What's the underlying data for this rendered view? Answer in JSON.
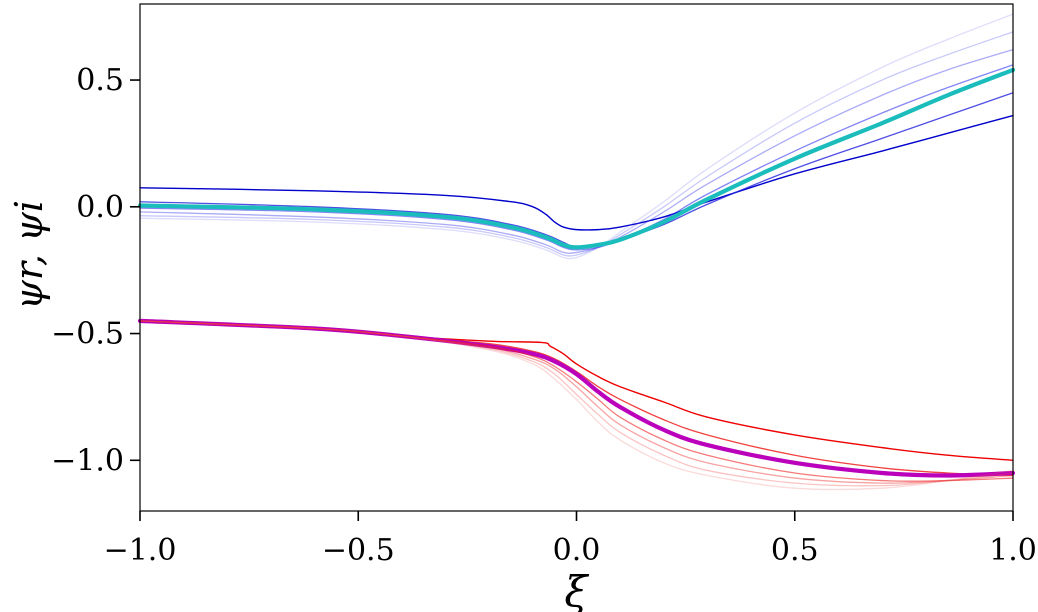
{
  "chart_data": {
    "type": "line",
    "title": "",
    "xlabel": "ξ",
    "ylabel": "ψr, ψi",
    "xlim": [
      -1.0,
      1.0
    ],
    "ylim": [
      -1.2,
      0.8
    ],
    "grid": false,
    "legend": "none",
    "x_ticks": [
      -1.0,
      -0.5,
      0.0,
      0.5,
      1.0
    ],
    "x_tick_labels": [
      "−1.0",
      "−0.5",
      "0.0",
      "0.5",
      "1.0"
    ],
    "y_ticks": [
      -1.0,
      -0.5,
      0.0,
      0.5
    ],
    "y_tick_labels": [
      "−1.0",
      "−0.5",
      "0.0",
      "0.5"
    ],
    "series": [
      {
        "color": "#0000cc",
        "opacity": 1.0,
        "width": 1.4,
        "points": [
          [
            -1.0,
            0.075
          ],
          [
            -0.6,
            0.063
          ],
          [
            -0.3,
            0.045
          ],
          [
            -0.15,
            0.02
          ],
          [
            -0.1,
            0.0
          ],
          [
            -0.07,
            -0.03
          ],
          [
            -0.05,
            -0.06
          ],
          [
            -0.03,
            -0.08
          ],
          [
            0.0,
            -0.09
          ],
          [
            0.05,
            -0.09
          ],
          [
            0.1,
            -0.08
          ],
          [
            0.2,
            -0.04
          ],
          [
            0.3,
            0.02
          ],
          [
            0.5,
            0.13
          ],
          [
            0.7,
            0.22
          ],
          [
            0.85,
            0.29
          ],
          [
            1.0,
            0.36
          ]
        ]
      },
      {
        "color": "#2222dd",
        "opacity": 0.8,
        "width": 1.3,
        "points": [
          [
            -1.0,
            0.02
          ],
          [
            -0.6,
            0.0
          ],
          [
            -0.3,
            -0.03
          ],
          [
            -0.15,
            -0.07
          ],
          [
            -0.07,
            -0.11
          ],
          [
            -0.03,
            -0.14
          ],
          [
            0.0,
            -0.16
          ],
          [
            0.05,
            -0.15
          ],
          [
            0.1,
            -0.13
          ],
          [
            0.2,
            -0.07
          ],
          [
            0.3,
            0.01
          ],
          [
            0.5,
            0.15
          ],
          [
            0.7,
            0.27
          ],
          [
            0.85,
            0.36
          ],
          [
            1.0,
            0.45
          ]
        ]
      },
      {
        "color": "#3333ee",
        "opacity": 0.6,
        "width": 1.3,
        "points": [
          [
            -1.0,
            -0.005
          ],
          [
            -0.6,
            -0.02
          ],
          [
            -0.3,
            -0.05
          ],
          [
            -0.15,
            -0.09
          ],
          [
            -0.07,
            -0.13
          ],
          [
            -0.03,
            -0.16
          ],
          [
            0.0,
            -0.17
          ],
          [
            0.05,
            -0.16
          ],
          [
            0.1,
            -0.13
          ],
          [
            0.2,
            -0.05
          ],
          [
            0.3,
            0.05
          ],
          [
            0.5,
            0.22
          ],
          [
            0.7,
            0.37
          ],
          [
            0.85,
            0.47
          ],
          [
            1.0,
            0.56
          ]
        ]
      },
      {
        "color": "#4444ee",
        "opacity": 0.45,
        "width": 1.3,
        "points": [
          [
            -1.0,
            -0.02
          ],
          [
            -0.6,
            -0.04
          ],
          [
            -0.3,
            -0.07
          ],
          [
            -0.15,
            -0.11
          ],
          [
            -0.07,
            -0.15
          ],
          [
            -0.03,
            -0.18
          ],
          [
            0.0,
            -0.18
          ],
          [
            0.05,
            -0.16
          ],
          [
            0.1,
            -0.12
          ],
          [
            0.2,
            -0.02
          ],
          [
            0.3,
            0.09
          ],
          [
            0.5,
            0.28
          ],
          [
            0.7,
            0.44
          ],
          [
            0.85,
            0.54
          ],
          [
            1.0,
            0.62
          ]
        ]
      },
      {
        "color": "#5555ee",
        "opacity": 0.32,
        "width": 1.3,
        "points": [
          [
            -1.0,
            -0.035
          ],
          [
            -0.6,
            -0.05
          ],
          [
            -0.3,
            -0.08
          ],
          [
            -0.15,
            -0.12
          ],
          [
            -0.07,
            -0.16
          ],
          [
            -0.03,
            -0.19
          ],
          [
            0.0,
            -0.19
          ],
          [
            0.05,
            -0.16
          ],
          [
            0.1,
            -0.11
          ],
          [
            0.2,
            0.0
          ],
          [
            0.3,
            0.12
          ],
          [
            0.5,
            0.33
          ],
          [
            0.7,
            0.5
          ],
          [
            0.85,
            0.6
          ],
          [
            1.0,
            0.69
          ]
        ]
      },
      {
        "color": "#6666ee",
        "opacity": 0.22,
        "width": 1.3,
        "points": [
          [
            -1.0,
            -0.045
          ],
          [
            -0.6,
            -0.06
          ],
          [
            -0.3,
            -0.09
          ],
          [
            -0.15,
            -0.13
          ],
          [
            -0.07,
            -0.17
          ],
          [
            -0.03,
            -0.2
          ],
          [
            0.0,
            -0.2
          ],
          [
            0.05,
            -0.16
          ],
          [
            0.1,
            -0.1
          ],
          [
            0.2,
            0.02
          ],
          [
            0.3,
            0.15
          ],
          [
            0.5,
            0.37
          ],
          [
            0.7,
            0.55
          ],
          [
            0.85,
            0.66
          ],
          [
            1.0,
            0.76
          ]
        ]
      },
      {
        "color": "#1bbcbc",
        "opacity": 1.0,
        "width": 4.2,
        "points": [
          [
            -1.0,
            0.005
          ],
          [
            -0.6,
            -0.01
          ],
          [
            -0.3,
            -0.04
          ],
          [
            -0.15,
            -0.08
          ],
          [
            -0.07,
            -0.12
          ],
          [
            -0.03,
            -0.15
          ],
          [
            0.0,
            -0.16
          ],
          [
            0.05,
            -0.15
          ],
          [
            0.1,
            -0.13
          ],
          [
            0.2,
            -0.06
          ],
          [
            0.3,
            0.03
          ],
          [
            0.5,
            0.19
          ],
          [
            0.7,
            0.33
          ],
          [
            0.85,
            0.44
          ],
          [
            1.0,
            0.54
          ]
        ]
      },
      {
        "color": "#ee0000",
        "opacity": 1.0,
        "width": 1.4,
        "points": [
          [
            -1.0,
            -0.45
          ],
          [
            -0.6,
            -0.48
          ],
          [
            -0.4,
            -0.51
          ],
          [
            -0.2,
            -0.53
          ],
          [
            -0.08,
            -0.535
          ],
          [
            -0.06,
            -0.55
          ],
          [
            -0.03,
            -0.58
          ],
          [
            0.0,
            -0.62
          ],
          [
            0.05,
            -0.67
          ],
          [
            0.1,
            -0.71
          ],
          [
            0.2,
            -0.77
          ],
          [
            0.3,
            -0.83
          ],
          [
            0.5,
            -0.9
          ],
          [
            0.7,
            -0.95
          ],
          [
            0.85,
            -0.98
          ],
          [
            1.0,
            -1.0
          ]
        ]
      },
      {
        "color": "#ee1111",
        "opacity": 0.8,
        "width": 1.3,
        "points": [
          [
            -1.0,
            -0.45
          ],
          [
            -0.6,
            -0.48
          ],
          [
            -0.4,
            -0.51
          ],
          [
            -0.2,
            -0.54
          ],
          [
            -0.1,
            -0.57
          ],
          [
            -0.05,
            -0.6
          ],
          [
            0.0,
            -0.65
          ],
          [
            0.05,
            -0.71
          ],
          [
            0.1,
            -0.76
          ],
          [
            0.2,
            -0.84
          ],
          [
            0.3,
            -0.9
          ],
          [
            0.5,
            -0.98
          ],
          [
            0.7,
            -1.03
          ],
          [
            0.85,
            -1.05
          ],
          [
            1.0,
            -1.06
          ]
        ]
      },
      {
        "color": "#bb00bb",
        "opacity": 1.0,
        "width": 4.2,
        "points": [
          [
            -1.0,
            -0.45
          ],
          [
            -0.6,
            -0.48
          ],
          [
            -0.4,
            -0.51
          ],
          [
            -0.2,
            -0.55
          ],
          [
            -0.1,
            -0.58
          ],
          [
            -0.05,
            -0.61
          ],
          [
            0.0,
            -0.66
          ],
          [
            0.05,
            -0.73
          ],
          [
            0.1,
            -0.79
          ],
          [
            0.2,
            -0.88
          ],
          [
            0.3,
            -0.94
          ],
          [
            0.5,
            -1.01
          ],
          [
            0.7,
            -1.05
          ],
          [
            0.85,
            -1.06
          ],
          [
            1.0,
            -1.05
          ]
        ]
      },
      {
        "color": "#ee2222",
        "opacity": 0.6,
        "width": 1.3,
        "points": [
          [
            -1.0,
            -0.45
          ],
          [
            -0.6,
            -0.48
          ],
          [
            -0.4,
            -0.51
          ],
          [
            -0.2,
            -0.55
          ],
          [
            -0.1,
            -0.59
          ],
          [
            -0.05,
            -0.63
          ],
          [
            0.0,
            -0.69
          ],
          [
            0.05,
            -0.76
          ],
          [
            0.1,
            -0.83
          ],
          [
            0.2,
            -0.92
          ],
          [
            0.3,
            -0.98
          ],
          [
            0.5,
            -1.05
          ],
          [
            0.7,
            -1.08
          ],
          [
            0.85,
            -1.08
          ],
          [
            1.0,
            -1.07
          ]
        ]
      },
      {
        "color": "#ee3333",
        "opacity": 0.45,
        "width": 1.3,
        "points": [
          [
            -1.0,
            -0.45
          ],
          [
            -0.6,
            -0.48
          ],
          [
            -0.4,
            -0.51
          ],
          [
            -0.2,
            -0.555
          ],
          [
            -0.1,
            -0.6
          ],
          [
            -0.05,
            -0.64
          ],
          [
            0.0,
            -0.71
          ],
          [
            0.05,
            -0.79
          ],
          [
            0.1,
            -0.86
          ],
          [
            0.2,
            -0.95
          ],
          [
            0.3,
            -1.01
          ],
          [
            0.5,
            -1.07
          ],
          [
            0.7,
            -1.09
          ],
          [
            0.85,
            -1.08
          ],
          [
            1.0,
            -1.06
          ]
        ]
      },
      {
        "color": "#ee4444",
        "opacity": 0.32,
        "width": 1.3,
        "points": [
          [
            -1.0,
            -0.45
          ],
          [
            -0.6,
            -0.48
          ],
          [
            -0.4,
            -0.51
          ],
          [
            -0.2,
            -0.56
          ],
          [
            -0.1,
            -0.61
          ],
          [
            -0.05,
            -0.66
          ],
          [
            0.0,
            -0.74
          ],
          [
            0.05,
            -0.82
          ],
          [
            0.1,
            -0.89
          ],
          [
            0.2,
            -0.98
          ],
          [
            0.3,
            -1.04
          ],
          [
            0.5,
            -1.09
          ],
          [
            0.7,
            -1.1
          ],
          [
            0.85,
            -1.08
          ],
          [
            1.0,
            -1.05
          ]
        ]
      },
      {
        "color": "#ee5555",
        "opacity": 0.22,
        "width": 1.3,
        "points": [
          [
            -1.0,
            -0.45
          ],
          [
            -0.6,
            -0.48
          ],
          [
            -0.4,
            -0.51
          ],
          [
            -0.2,
            -0.565
          ],
          [
            -0.1,
            -0.62
          ],
          [
            -0.05,
            -0.68
          ],
          [
            0.0,
            -0.76
          ],
          [
            0.05,
            -0.85
          ],
          [
            0.1,
            -0.92
          ],
          [
            0.2,
            -1.01
          ],
          [
            0.3,
            -1.06
          ],
          [
            0.5,
            -1.11
          ],
          [
            0.7,
            -1.11
          ],
          [
            0.85,
            -1.08
          ],
          [
            1.0,
            -1.04
          ]
        ]
      }
    ]
  }
}
